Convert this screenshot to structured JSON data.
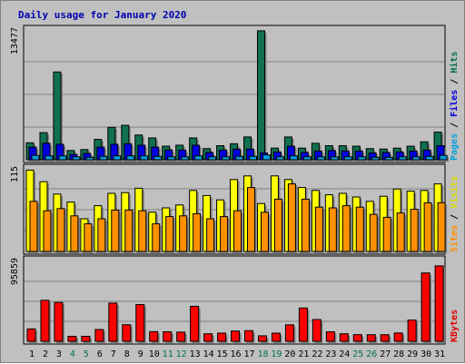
{
  "chart_data": {
    "type": "bar",
    "title": "Daily usage for January 2020",
    "categories": [
      "1",
      "2",
      "3",
      "4",
      "5",
      "6",
      "7",
      "8",
      "9",
      "10",
      "11",
      "12",
      "13",
      "14",
      "15",
      "16",
      "17",
      "18",
      "19",
      "20",
      "21",
      "22",
      "23",
      "24",
      "25",
      "26",
      "27",
      "28",
      "29",
      "30",
      "31"
    ],
    "weekend_days": [
      4,
      5,
      11,
      12,
      18,
      19,
      25,
      26
    ],
    "weekday_label_color": "#000000",
    "weekend_label_color": "#007050",
    "background_color": "#c0c0c0",
    "panels": [
      {
        "id": "hits-files-pages",
        "max_label": "13477",
        "ylim": [
          0,
          13477
        ],
        "grid": true,
        "legend": [
          {
            "text": "Pages",
            "color": "#00a0e0"
          },
          {
            "text": " / ",
            "color": "#000000"
          },
          {
            "text": "Files",
            "color": "#0000e0"
          },
          {
            "text": " / ",
            "color": "#000000"
          },
          {
            "text": "Hits",
            "color": "#007050"
          }
        ],
        "series": [
          {
            "name": "Hits",
            "color": "#107050",
            "values": [
              1750,
              2800,
              9050,
              950,
              1050,
              2100,
              3350,
              3550,
              2550,
              2250,
              1400,
              1500,
              2250,
              1150,
              1450,
              1650,
              2350,
              13300,
              1200,
              2350,
              1200,
              1700,
              1450,
              1450,
              1400,
              1150,
              1100,
              1200,
              1400,
              1850,
              2850
            ]
          },
          {
            "name": "Files",
            "color": "#0000e0",
            "values": [
              1300,
              1700,
              1600,
              550,
              650,
              1300,
              1600,
              1650,
              1500,
              1300,
              1000,
              1000,
              1500,
              750,
              1000,
              1100,
              1100,
              700,
              800,
              1400,
              750,
              900,
              950,
              900,
              900,
              700,
              750,
              800,
              900,
              1000,
              1450
            ]
          },
          {
            "name": "Pages",
            "color": "#00a0e0",
            "values": [
              450,
              400,
              400,
              300,
              250,
              350,
              400,
              400,
              400,
              350,
              300,
              300,
              400,
              300,
              300,
              350,
              350,
              500,
              300,
              400,
              300,
              300,
              300,
              300,
              300,
              250,
              250,
              300,
              300,
              350,
              450
            ]
          }
        ]
      },
      {
        "id": "visits-sites",
        "max_label": "115",
        "ylim": [
          0,
          115
        ],
        "grid": true,
        "legend": [
          {
            "text": "Sites",
            "color": "#ff9000"
          },
          {
            "text": " / ",
            "color": "#000000"
          },
          {
            "text": "Visits",
            "color": "#e0e000"
          }
        ],
        "series": [
          {
            "name": "Visits",
            "color": "#ffff00",
            "values": [
              112,
              96,
              79,
              68,
              45,
              63,
              80,
              81,
              87,
              54,
              60,
              64,
              84,
              77,
              71,
              99,
              104,
              66,
              104,
              99,
              88,
              84,
              78,
              80,
              75,
              69,
              76,
              86,
              83,
              84,
              93
            ]
          },
          {
            "name": "Sites",
            "color": "#ff9000",
            "values": [
              69,
              56,
              59,
              49,
              38,
              45,
              57,
              57,
              56,
              38,
              48,
              49,
              52,
              45,
              48,
              56,
              88,
              54,
              72,
              93,
              72,
              61,
              60,
              63,
              61,
              51,
              47,
              53,
              58,
              67,
              67
            ]
          }
        ]
      },
      {
        "id": "kbytes",
        "max_label": "95859",
        "ylim": [
          0,
          95859
        ],
        "grid": true,
        "legend": [
          {
            "text": "KBytes",
            "color": "#e00000"
          }
        ],
        "series": [
          {
            "name": "KBytes",
            "color": "#ff0000",
            "values": [
              14900,
              49200,
              46600,
              6000,
              6000,
              14100,
              45900,
              19900,
              44100,
              11600,
              11400,
              11000,
              42000,
              9000,
              9800,
              12300,
              12800,
              6600,
              9800,
              19800,
              40000,
              26100,
              11400,
              9000,
              8000,
              7900,
              7900,
              10000,
              25500,
              82000,
              90500
            ]
          }
        ]
      }
    ]
  }
}
